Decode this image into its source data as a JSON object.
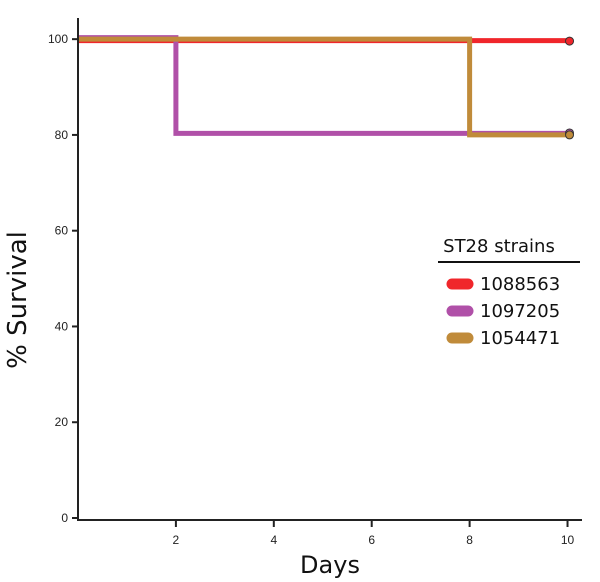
{
  "chart_data": {
    "type": "line",
    "step": true,
    "xlabel": "Days",
    "ylabel": "% Survival",
    "xlim": [
      0,
      10.5
    ],
    "ylim": [
      0,
      104
    ],
    "xticks": [
      2,
      4,
      6,
      8,
      10
    ],
    "yticks": [
      0,
      20,
      40,
      60,
      80,
      100
    ],
    "grid": false,
    "legend": {
      "title": "ST28 strains",
      "position": "right"
    },
    "series": [
      {
        "name": "1088563",
        "color": "#f0262b",
        "x": [
          0,
          10
        ],
        "y": [
          100,
          100
        ]
      },
      {
        "name": "1097205",
        "color": "#b050a8",
        "x": [
          0,
          2,
          10
        ],
        "y": [
          100,
          80,
          80
        ]
      },
      {
        "name": "1054471",
        "color": "#c08b3a",
        "x": [
          0,
          8,
          10
        ],
        "y": [
          100,
          80,
          80
        ]
      }
    ]
  }
}
